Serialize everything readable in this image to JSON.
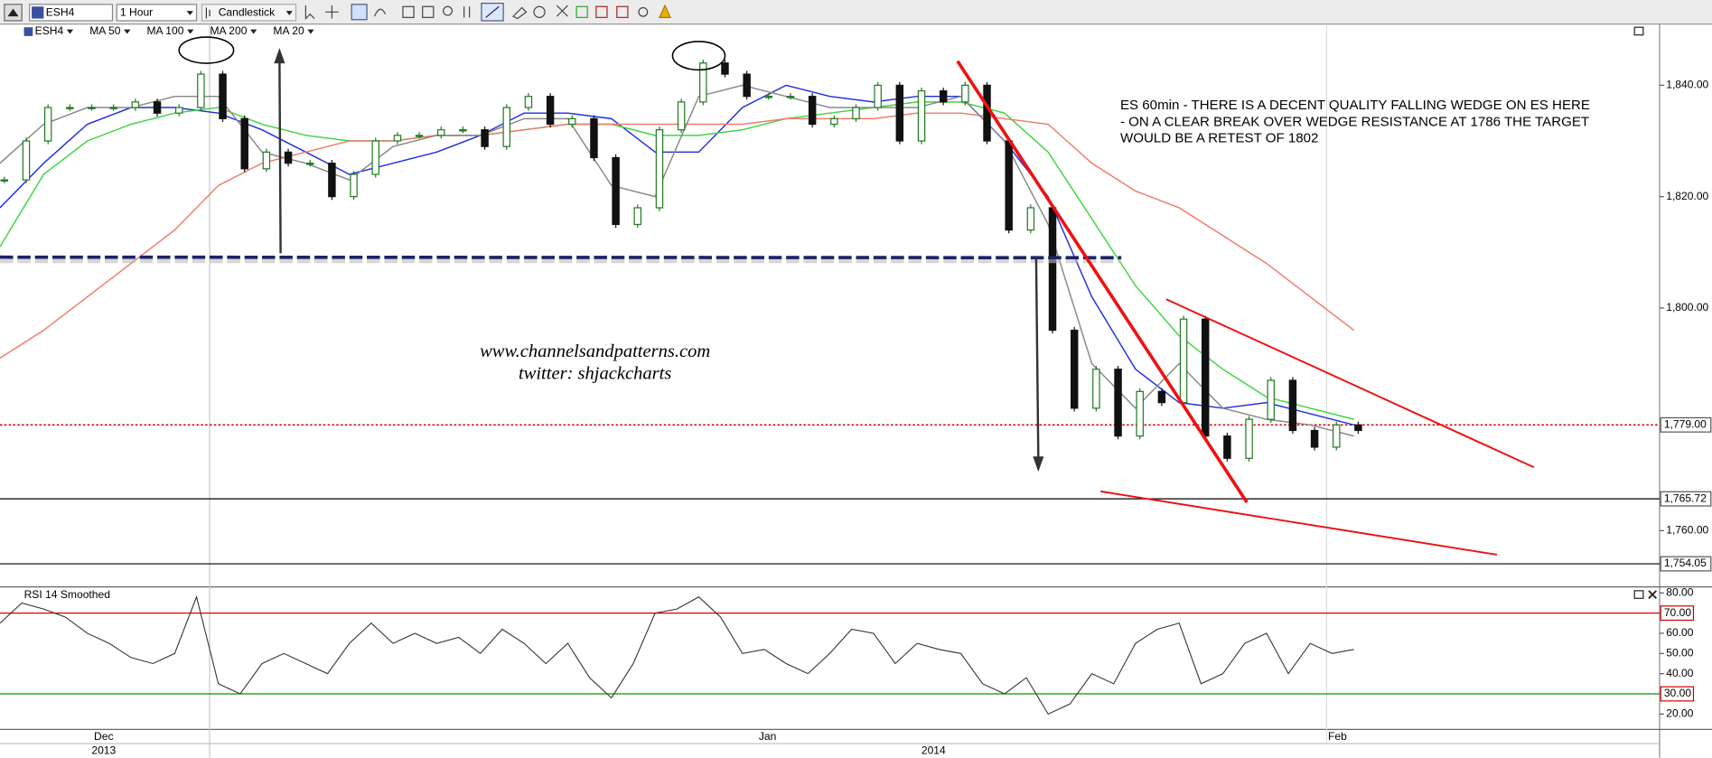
{
  "toolbar": {
    "symbol": "ESH4",
    "interval": "1 Hour",
    "chart_style": "Candlestick"
  },
  "chart_data": [
    {
      "type": "candlestick",
      "price": {
        "name": "ESH4",
        "up_color": "#1f7a1f",
        "down_color": "#111111",
        "values": [
          1823,
          1830,
          1836,
          1836,
          1836,
          1836,
          1837,
          1835,
          1836,
          1842,
          1834,
          1825,
          1828,
          1826,
          1826,
          1820,
          1824,
          1830,
          1831,
          1831,
          1832,
          1832,
          1829,
          1836,
          1838,
          1833,
          1834,
          1827,
          1815,
          1818,
          1832,
          1837,
          1844,
          1842,
          1838,
          1838,
          1838,
          1833,
          1834,
          1836,
          1840,
          1830,
          1839,
          1837,
          1840,
          1830,
          1814,
          1818,
          1796,
          1782,
          1789,
          1777,
          1785,
          1783,
          1798,
          1777,
          1773,
          1780,
          1787,
          1778,
          1775,
          1779,
          1778
        ]
      },
      "series": [
        {
          "name": "MA 50",
          "color": "#1f2fe0",
          "values": [
            1818,
            1826,
            1833,
            1836,
            1836,
            1835,
            1832,
            1828,
            1824,
            1826,
            1828,
            1831,
            1835,
            1835,
            1834,
            1828,
            1828,
            1836,
            1840,
            1838,
            1837,
            1838,
            1838,
            1830,
            1820,
            1802,
            1789,
            1783,
            1782,
            1783,
            1781,
            1779
          ]
        },
        {
          "name": "MA 100",
          "color": "#3fd43f",
          "values": [
            1811,
            1824,
            1830,
            1833,
            1835,
            1836,
            1833,
            1831,
            1830,
            1830,
            1831,
            1831,
            1832,
            1833,
            1833,
            1831,
            1831,
            1832,
            1834,
            1835,
            1836,
            1837,
            1837,
            1835,
            1828,
            1816,
            1804,
            1795,
            1789,
            1784,
            1782,
            1780
          ]
        },
        {
          "name": "MA 200",
          "color": "#f07a6a",
          "values": [
            1791,
            1796,
            1802,
            1808,
            1814,
            1822,
            1826,
            1828,
            1830,
            1830,
            1831,
            1831,
            1832,
            1833,
            1833,
            1833,
            1833,
            1833,
            1834,
            1834,
            1834,
            1835,
            1835,
            1834,
            1833,
            1826,
            1821,
            1818,
            1813,
            1808,
            1802,
            1796
          ]
        },
        {
          "name": "MA 20",
          "color": "#888888",
          "values": [
            1826,
            1833,
            1836,
            1836,
            1838,
            1838,
            1828,
            1826,
            1823,
            1829,
            1831,
            1831,
            1834,
            1834,
            1822,
            1820,
            1838,
            1840,
            1838,
            1836,
            1836,
            1836,
            1838,
            1830,
            1815,
            1790,
            1782,
            1790,
            1782,
            1780,
            1779,
            1777
          ]
        }
      ],
      "ylim": [
        1750,
        1851
      ],
      "yticks": [
        {
          "value": 1760,
          "label": "1,760.00"
        },
        {
          "value": 1800,
          "label": "1,800.00"
        },
        {
          "value": 1820,
          "label": "1,820.00"
        },
        {
          "value": 1840,
          "label": "1,840.00"
        }
      ],
      "markers": [
        {
          "value": 1779,
          "label": "1,779.00",
          "line_color": "#dd0000",
          "text_color": "#000000",
          "dotted": true
        },
        {
          "value": 1765.72,
          "label": "1,765.72",
          "line_color": "#000000",
          "text_color": "#cc0000",
          "dotted": false
        },
        {
          "value": 1754.05,
          "label": "1,754.05",
          "line_color": "#000000",
          "text_color": "#cc0000",
          "dotted": false
        }
      ],
      "annotation": [
        "ES 60min - THERE IS A DECENT QUALITY FALLING WEDGE ON ES HERE",
        "- ON A CLEAR BREAK OVER WEDGE RESISTANCE AT 1786 THE TARGET",
        "WOULD BE A RETEST OF 1802"
      ],
      "watermark": [
        "www.channelsandpatterns.com",
        "twitter: shjackcharts"
      ]
    },
    {
      "type": "line",
      "title": "RSI 14 Smoothed",
      "color": "#333333",
      "values": [
        65,
        75,
        72,
        68,
        60,
        55,
        48,
        45,
        50,
        78,
        35,
        30,
        45,
        50,
        45,
        40,
        55,
        65,
        55,
        60,
        55,
        58,
        50,
        62,
        55,
        45,
        55,
        38,
        28,
        45,
        70,
        72,
        78,
        68,
        50,
        52,
        45,
        40,
        50,
        62,
        60,
        45,
        55,
        52,
        50,
        35,
        30,
        38,
        20,
        25,
        40,
        35,
        55,
        62,
        65,
        35,
        40,
        55,
        60,
        40,
        55,
        50,
        52
      ],
      "ylim": [
        12.4,
        82.7
      ],
      "yticks": [
        {
          "value": 20,
          "label": "20.00"
        },
        {
          "value": 40,
          "label": "40.00"
        },
        {
          "value": 50,
          "label": "50.00"
        },
        {
          "value": 60,
          "label": "60.00"
        },
        {
          "value": 80,
          "label": "80.00"
        }
      ],
      "levels": [
        {
          "value": 70,
          "label": "70.00",
          "color": "#dd0000"
        },
        {
          "value": 30,
          "label": "30.00",
          "color": "#009900"
        }
      ]
    }
  ],
  "x_axis": {
    "months": [
      "Dec",
      "Jan",
      "Feb"
    ],
    "years": [
      "2013",
      "2014"
    ]
  }
}
